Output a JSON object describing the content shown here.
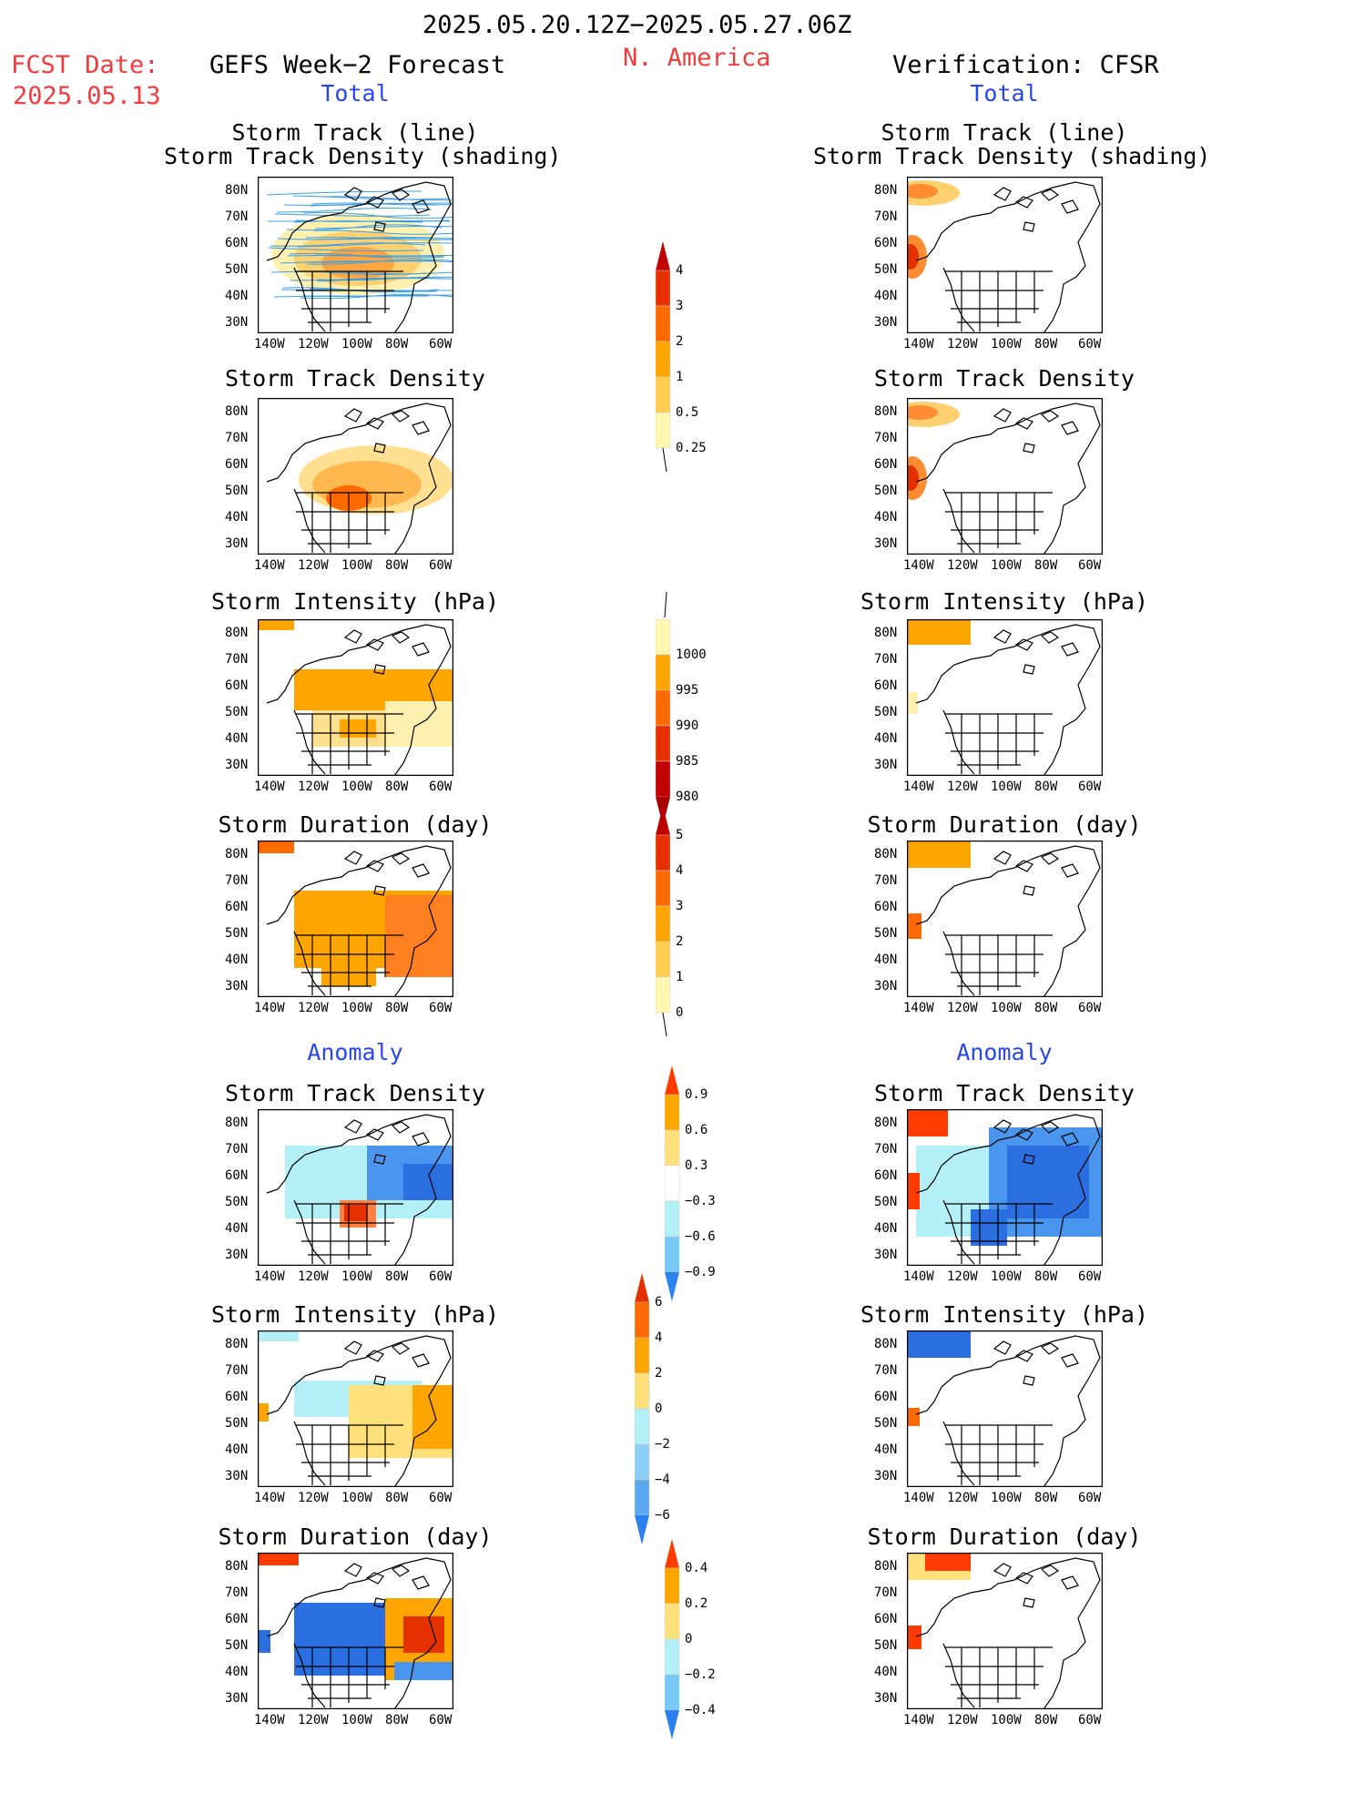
{
  "header": {
    "date_range": "2025.05.20.12Z−2025.05.27.06Z",
    "fcst_label": "FCST Date:",
    "fcst_date": "2025.05.13",
    "left_title": "GEFS Week−2 Forecast",
    "region": "N. America",
    "right_title": "Verification: CFSR"
  },
  "sections": {
    "total": "Total",
    "anomaly": "Anomaly"
  },
  "panel_titles": {
    "track_line_1": "Storm Track (line)",
    "track_line_2": "Storm Track Density (shading)",
    "density": "Storm Track Density",
    "intensity": "Storm Intensity (hPa)",
    "duration": "Storm Duration (day)"
  },
  "axes": {
    "lat_ticks": [
      "80N",
      "70N",
      "60N",
      "50N",
      "40N",
      "30N"
    ],
    "lon_ticks": [
      "140W",
      "120W",
      "100W",
      "80W",
      "60W"
    ]
  },
  "colorbars": {
    "density": {
      "labels": [
        "4",
        "3",
        "2",
        "1",
        "0.5",
        "0.25"
      ],
      "colors": [
        "#c00000",
        "#e53000",
        "#ff6a00",
        "#ffa500",
        "#ffce50",
        "#fff8b0"
      ]
    },
    "intensity": {
      "labels": [
        "1000",
        "995",
        "990",
        "985",
        "980"
      ],
      "colors": [
        "#fff8b0",
        "#ffa500",
        "#ff6a00",
        "#e53000",
        "#c00000",
        "#a80000"
      ]
    },
    "duration": {
      "labels": [
        "5",
        "4",
        "3",
        "2",
        "1",
        "0"
      ],
      "colors": [
        "#c00000",
        "#e53000",
        "#ff6a00",
        "#ffa500",
        "#ffce50",
        "#fff8b0"
      ]
    },
    "anom_density": {
      "labels": [
        "0.9",
        "0.6",
        "0.3",
        "−0.3",
        "−0.6",
        "−0.9"
      ],
      "colors": [
        "#ff3c00",
        "#ffa500",
        "#ffe07a",
        "#ffffff",
        "#b4f0f8",
        "#78c8f8",
        "#2a82f0"
      ]
    },
    "anom_intensity": {
      "labels": [
        "6",
        "4",
        "2",
        "0",
        "−2",
        "−4",
        "−6"
      ],
      "colors": [
        "#e53000",
        "#ff6a00",
        "#ffa500",
        "#ffe07a",
        "#b4f0f8",
        "#8cd0f8",
        "#5aa8f0",
        "#2a82f0"
      ]
    },
    "anom_duration": {
      "labels": [
        "0.4",
        "0.2",
        "0",
        "−0.2",
        "−0.4"
      ],
      "colors": [
        "#ff3c00",
        "#ffa500",
        "#ffe07a",
        "#b4f0f8",
        "#78c8f8",
        "#2a82f0"
      ]
    }
  }
}
